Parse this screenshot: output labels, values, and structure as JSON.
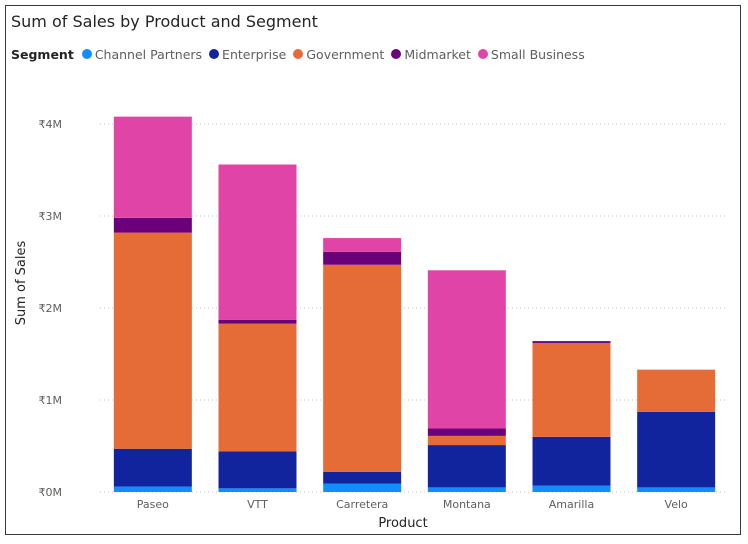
{
  "colors": {
    "Channel Partners": "#118DFF",
    "Enterprise": "#12239E",
    "Government": "#E66C37",
    "Midmarket": "#6B007B",
    "Small Business": "#E044A7"
  },
  "chart_data": {
    "type": "bar",
    "stacked": true,
    "title": "Sum of Sales by Product and Segment",
    "legend_title": "Segment",
    "xlabel": "Product",
    "ylabel": "Sum of Sales",
    "ylim": [
      0,
      4000000
    ],
    "yticks": [
      0,
      1000000,
      2000000,
      3000000,
      4000000
    ],
    "ytick_labels": [
      "₹0M",
      "₹1M",
      "₹2M",
      "₹3M",
      "₹4M"
    ],
    "categories": [
      "Paseo",
      "VTT",
      "Carretera",
      "Montana",
      "Amarilla",
      "Velo"
    ],
    "series": [
      {
        "name": "Channel Partners",
        "values": [
          60000,
          40000,
          90000,
          50000,
          70000,
          50000
        ]
      },
      {
        "name": "Enterprise",
        "values": [
          410000,
          400000,
          130000,
          460000,
          530000,
          820000
        ]
      },
      {
        "name": "Government",
        "values": [
          2350000,
          1390000,
          2250000,
          100000,
          1020000,
          460000
        ]
      },
      {
        "name": "Midmarket",
        "values": [
          160000,
          40000,
          140000,
          80000,
          20000,
          0
        ]
      },
      {
        "name": "Small Business",
        "values": [
          1100000,
          1690000,
          150000,
          1720000,
          0,
          0
        ]
      }
    ]
  }
}
